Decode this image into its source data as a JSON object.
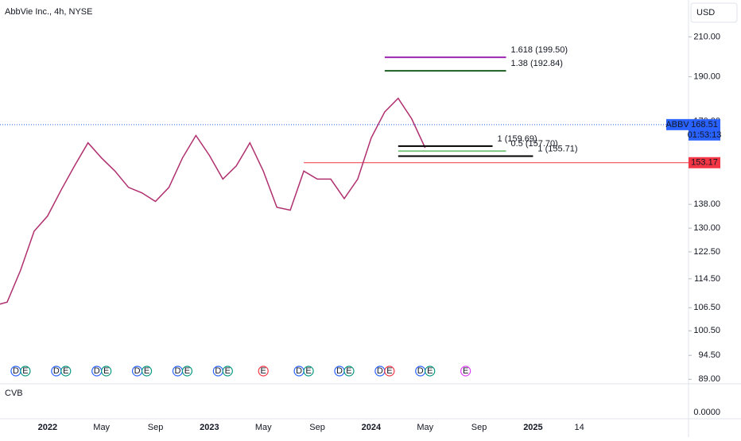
{
  "header": {
    "title": "AbbVie Inc., 4h, NYSE",
    "currency": "USD"
  },
  "chart_data": {
    "type": "line",
    "color": "#b0306f",
    "log_scale": true,
    "grid": false,
    "x": [
      "2021-09",
      "2021-10",
      "2021-11",
      "2021-12",
      "2022-01",
      "2022-02",
      "2022-03",
      "2022-04",
      "2022-05",
      "2022-06",
      "2022-07",
      "2022-08",
      "2022-09",
      "2022-10",
      "2022-11",
      "2022-12",
      "2023-01",
      "2023-02",
      "2023-03",
      "2023-04",
      "2023-05",
      "2023-06",
      "2023-07",
      "2023-08",
      "2023-09",
      "2023-10",
      "2023-11",
      "2023-12",
      "2024-01",
      "2024-02",
      "2024-03",
      "2024-04",
      "2024-05"
    ],
    "values": [
      107,
      108,
      117,
      129,
      134,
      143,
      152,
      161,
      155,
      150,
      144,
      142,
      139,
      144,
      155,
      164,
      156,
      147,
      152,
      161,
      150,
      137,
      136,
      150,
      147,
      147,
      140,
      147,
      163,
      174,
      180,
      171,
      159
    ],
    "xlim": [
      "2021-09",
      "2025-12"
    ],
    "ylim": [
      88,
      220
    ],
    "yticks": [
      {
        "value": 210,
        "label": "210.00"
      },
      {
        "value": 190,
        "label": "190.00"
      },
      {
        "value": 170,
        "label": "170.00"
      },
      {
        "value": 138,
        "label": "138.00"
      },
      {
        "value": 130,
        "label": "130.00"
      },
      {
        "value": 122.5,
        "label": "122.50"
      },
      {
        "value": 114.5,
        "label": "114.50"
      },
      {
        "value": 106.5,
        "label": "106.50"
      },
      {
        "value": 100.5,
        "label": "100.50"
      },
      {
        "value": 94.5,
        "label": "94.50"
      },
      {
        "value": 89,
        "label": "89.00"
      }
    ],
    "xticks": [
      {
        "value": "2022-01",
        "label": "2022"
      },
      {
        "value": "2022-05",
        "label": "May"
      },
      {
        "value": "2022-09",
        "label": "Sep"
      },
      {
        "value": "2023-01",
        "label": "2023"
      },
      {
        "value": "2023-05",
        "label": "May"
      },
      {
        "value": "2023-09",
        "label": "Sep"
      },
      {
        "value": "2024-01",
        "label": "2024"
      },
      {
        "value": "2024-05",
        "label": "May"
      },
      {
        "value": "2024-09",
        "label": "Sep"
      },
      {
        "value": "2025-01",
        "label": "2025"
      },
      {
        "value": "2025-04-14",
        "label": "14"
      }
    ],
    "levels": [
      {
        "label": "1.618 (199.50)",
        "value": 199.5,
        "color": "#9c27b0",
        "x": [
          "2024-02",
          "2024-11"
        ]
      },
      {
        "label": "1.38 (192.84)",
        "value": 192.84,
        "color": "#1b5e20",
        "x": [
          "2024-02",
          "2024-11"
        ]
      },
      {
        "label": "1 (159.69)",
        "value": 159.69,
        "color": "#000000",
        "x": [
          "2024-03",
          "2024-10"
        ]
      },
      {
        "label": "0.5 (157.70)",
        "value": 157.7,
        "color": "#81c784",
        "x": [
          "2024-03",
          "2024-11"
        ]
      },
      {
        "label": "1 (155.71)",
        "value": 155.71,
        "color": "#000000",
        "x": [
          "2024-03",
          "2025-01"
        ]
      }
    ],
    "price_line": {
      "value": 153.17,
      "color": "#f23645",
      "start": "2023-08"
    },
    "last_price": {
      "symbol": "ABBV",
      "value": 168.51,
      "countdown": "01:53:13",
      "color": "#2962ff"
    },
    "events": [
      {
        "date": "2021-11",
        "labels": [
          "D",
          "E"
        ],
        "colors": [
          "#2962ff",
          "#089981"
        ]
      },
      {
        "date": "2022-02",
        "labels": [
          "D",
          "E"
        ],
        "colors": [
          "#2962ff",
          "#089981"
        ]
      },
      {
        "date": "2022-05",
        "labels": [
          "D",
          "E"
        ],
        "colors": [
          "#2962ff",
          "#089981"
        ]
      },
      {
        "date": "2022-08",
        "labels": [
          "D",
          "E"
        ],
        "colors": [
          "#2962ff",
          "#089981"
        ]
      },
      {
        "date": "2022-11",
        "labels": [
          "D",
          "E"
        ],
        "colors": [
          "#2962ff",
          "#089981"
        ]
      },
      {
        "date": "2023-02",
        "labels": [
          "D",
          "E"
        ],
        "colors": [
          "#2962ff",
          "#089981"
        ]
      },
      {
        "date": "2023-05",
        "labels": [
          "E"
        ],
        "colors": [
          "#f23645"
        ]
      },
      {
        "date": "2023-08",
        "labels": [
          "D",
          "E"
        ],
        "colors": [
          "#2962ff",
          "#089981"
        ]
      },
      {
        "date": "2023-11",
        "labels": [
          "D",
          "E"
        ],
        "colors": [
          "#2962ff",
          "#089981"
        ]
      },
      {
        "date": "2024-02",
        "labels": [
          "D",
          "E"
        ],
        "colors": [
          "#2962ff",
          "#f23645"
        ]
      },
      {
        "date": "2024-05",
        "labels": [
          "D",
          "E"
        ],
        "colors": [
          "#2962ff",
          "#089981"
        ]
      },
      {
        "date": "2024-08",
        "labels": [
          "E"
        ],
        "colors": [
          "#e040fb"
        ]
      }
    ]
  },
  "volume_pane": {
    "title": "CVB",
    "axis_label": "0.0000"
  }
}
